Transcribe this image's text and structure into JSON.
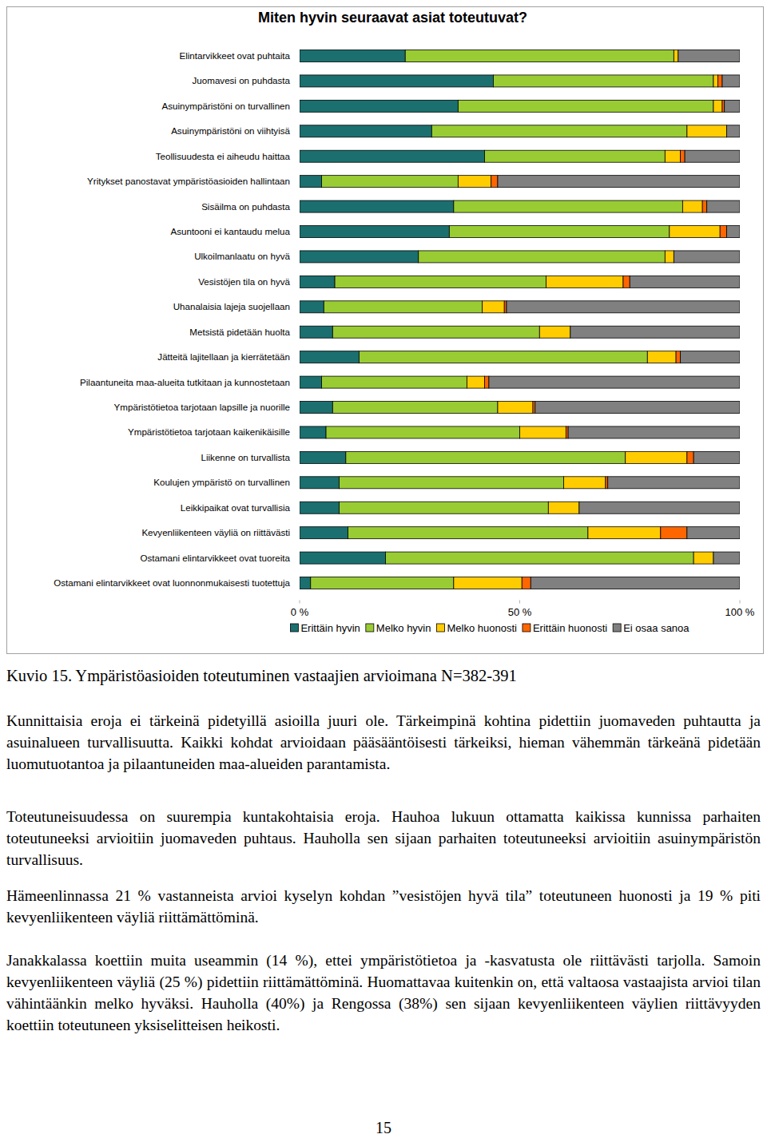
{
  "chart_data": {
    "type": "bar",
    "orientation": "horizontal",
    "stacked": true,
    "title": "Miten hyvin seuraavat asiat toteutuvat?",
    "categories": [
      "Elintarvikkeet ovat puhtaita",
      "Juomavesi on puhdasta",
      "Asuinympäristöni on turvallinen",
      "Asuinympäristöni on viihtyisä",
      "Teollisuudesta ei aiheudu haittaa",
      "Yritykset panostavat ympäristöasioiden hallintaan",
      "Sisäilma on puhdasta",
      "Asuntooni ei kantaudu melua",
      "Ulkoilmanlaatu on hyvä",
      "Vesistöjen tila on hyvä",
      "Uhanalaisia lajeja suojellaan",
      "Metsistä pidetään huolta",
      "Jätteitä lajitellaan ja kierrätetään",
      "Pilaantuneita maa-alueita tutkitaan ja kunnostetaan",
      "Ympäristötietoa tarjotaan lapsille ja nuorille",
      "Ympäristötietoa tarjotaan kaikenikäisille",
      "Liikenne on turvallista",
      "Koulujen ympäristö on turvallinen",
      "Leikkipaikat ovat turvallisia",
      "Kevyenliikenteen väyliä on riittävästi",
      "Ostamani elintarvikkeet ovat tuoreita",
      "Ostamani elintarvikkeet ovat luonnonmukaisesti tuotettuja"
    ],
    "series": [
      {
        "name": "Erittäin hyvin",
        "color": "#1b6f6f",
        "values": [
          24,
          44,
          36,
          30,
          42,
          5,
          35,
          34,
          27,
          8,
          5.5,
          7.5,
          13.5,
          5,
          7.5,
          6,
          10.5,
          9,
          9,
          11,
          19.5,
          2.5
        ]
      },
      {
        "name": "Melko hyvin",
        "color": "#99cc33",
        "values": [
          61,
          50,
          58,
          58,
          41,
          31,
          52,
          50,
          56,
          48,
          36,
          47,
          65.5,
          33,
          37.5,
          44,
          63.5,
          51,
          47.5,
          54.5,
          70,
          32.5
        ]
      },
      {
        "name": "Melko huonosti",
        "color": "#ffcc00",
        "values": [
          1,
          1,
          2,
          9,
          3.5,
          7.5,
          4.5,
          11.5,
          2,
          17.5,
          5,
          7,
          6.5,
          4,
          8,
          10.5,
          14,
          9.5,
          7,
          16.5,
          4.5,
          15.5
        ]
      },
      {
        "name": "Erittäin huonosti",
        "color": "#ff6600",
        "values": [
          0,
          1,
          0.5,
          0,
          1,
          1.5,
          1,
          1.5,
          0,
          1.5,
          0.5,
          0,
          1,
          1,
          0.5,
          0.5,
          1.5,
          0.5,
          0,
          6,
          0,
          2
        ]
      },
      {
        "name": "Ei osaa sanoa",
        "color": "#808080",
        "values": [
          14,
          4,
          3.5,
          3,
          12.5,
          55,
          7.5,
          3,
          15,
          25,
          53,
          38.5,
          13.5,
          57,
          46.5,
          39,
          10.5,
          30,
          36.5,
          12,
          6,
          47.5
        ]
      }
    ],
    "xlim": [
      0,
      100
    ],
    "xticks": [
      {
        "value": 0,
        "label": "0 %"
      },
      {
        "value": 50,
        "label": "50 %"
      },
      {
        "value": 100,
        "label": "100 %"
      }
    ],
    "grid": false,
    "legend": "bottom"
  },
  "document": {
    "caption": "Kuvio 15. Ympäristöasioiden toteutuminen vastaajien arvioimana N=382-391",
    "paragraphs": [
      "Kunnittaisia eroja ei tärkeinä pidetyillä asioilla juuri ole. Tärkeimpinä kohtina pidettiin juomaveden puhtautta ja asuinalueen turvallisuutta. Kaikki kohdat arvioidaan pääsääntöisesti tärkeiksi, hieman vähemmän tärkeänä pidetään luomutuotantoa ja pilaantuneiden maa-alueiden parantamista.",
      "Toteutuneisuudessa on suurempia kuntakohtaisia eroja. Hauhoa lukuun ottamatta kaikissa kunnissa parhaiten toteutuneeksi arvioitiin juomaveden puhtaus. Hauholla sen sijaan parhaiten toteutuneeksi arvioitiin asuinympäristön turvallisuus.",
      "Hämeenlinnassa 21 % vastanneista arvioi kyselyn kohdan ”vesistöjen hyvä tila” toteutuneen huonosti ja 19 % piti kevyenliikenteen väyliä riittämättöminä.",
      "Janakkalassa koettiin muita useammin (14 %), ettei ympäristötietoa ja -kasvatusta ole riittävästi tarjolla. Samoin kevyenliikenteen väyliä (25 %) pidettiin riittämättöminä. Huomattavaa kuitenkin on, että valtaosa vastaajista arvioi tilan vähintäänkin melko hyväksi. Hauholla (40%) ja Rengossa (38%) sen sijaan kevyenliikenteen väylien riittävyyden koettiin toteutuneen yksiselitteisen heikosti."
    ],
    "page_number": "15"
  }
}
